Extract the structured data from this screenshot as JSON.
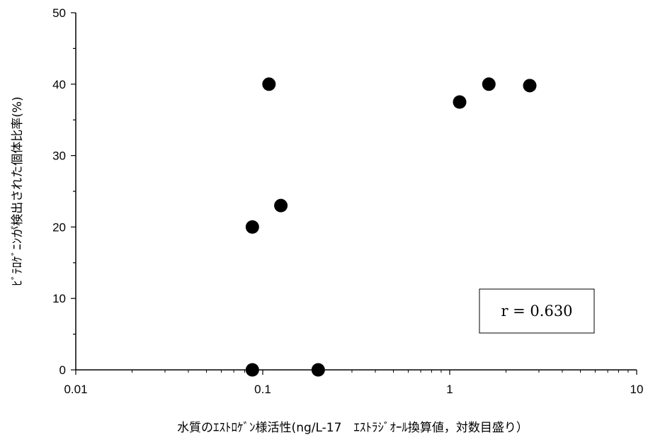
{
  "chart_data": {
    "type": "scatter",
    "title": "",
    "xlabel": "水質のｴｽﾄﾛｹﾞﾝ様活性(ng/L-17　ｴｽﾄﾗｼﾞｵｰﾙ換算値，対数目盛り）",
    "ylabel": "ﾋﾞﾃﾛｹﾞﾆﾝが検出された個体比率(%)",
    "x_scale": "log",
    "xlim": [
      0.01,
      10
    ],
    "ylim": [
      0,
      50
    ],
    "x_ticks": [
      "0.01",
      "0.1",
      "1",
      "10"
    ],
    "y_ticks": [
      "0",
      "10",
      "20",
      "30",
      "40",
      "50"
    ],
    "grid": false,
    "points": [
      {
        "x": 0.088,
        "y": 0
      },
      {
        "x": 0.088,
        "y": 20
      },
      {
        "x": 0.108,
        "y": 40
      },
      {
        "x": 0.125,
        "y": 23
      },
      {
        "x": 0.198,
        "y": 0
      },
      {
        "x": 1.13,
        "y": 37.5
      },
      {
        "x": 1.62,
        "y": 40
      },
      {
        "x": 2.68,
        "y": 39.8
      }
    ],
    "annotation": "r = 0.630",
    "marker_color": "#000000"
  }
}
